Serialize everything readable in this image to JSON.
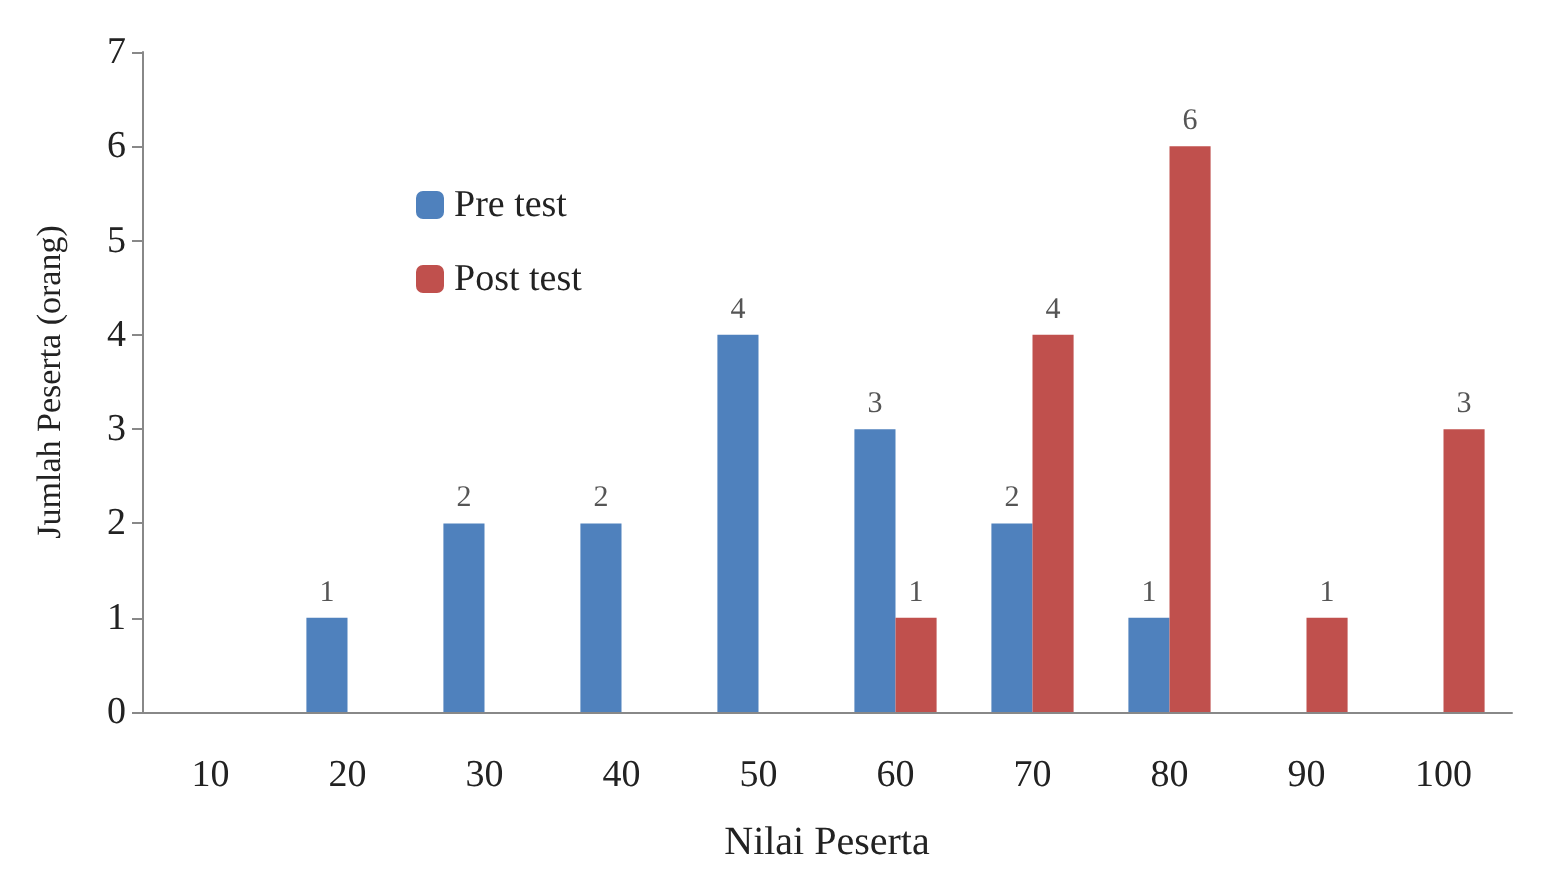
{
  "chart_data": {
    "type": "bar",
    "xlabel": "Nilai Peserta",
    "ylabel": "Jumlah Peserta (orang)",
    "categories": [
      "10",
      "20",
      "30",
      "40",
      "50",
      "60",
      "70",
      "80",
      "90",
      "100"
    ],
    "series": [
      {
        "name": "Pre test",
        "color": "#4f81bd",
        "values": [
          0,
          1,
          2,
          2,
          4,
          3,
          2,
          1,
          0,
          0
        ],
        "value_labels": [
          null,
          "1",
          "2",
          "2",
          "4",
          "3",
          "2",
          "1",
          null,
          null
        ]
      },
      {
        "name": "Post test",
        "color": "#c0504d",
        "values": [
          0,
          0,
          0,
          0,
          0,
          1,
          4,
          6,
          1,
          3
        ],
        "value_labels": [
          null,
          null,
          null,
          null,
          null,
          "1",
          "4",
          "6",
          "1",
          "3"
        ]
      }
    ],
    "ylim": [
      0,
      7
    ],
    "yticks": [
      0,
      1,
      2,
      3,
      4,
      5,
      6,
      7
    ],
    "grid": false,
    "legend": "top left"
  }
}
